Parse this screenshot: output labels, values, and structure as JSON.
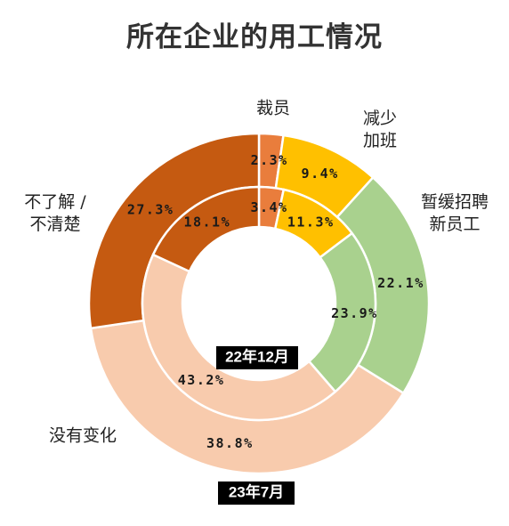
{
  "title": "所在企业的用工情况",
  "chart_data": {
    "type": "donut",
    "title": "所在企业的用工情况",
    "categories": [
      "裁员",
      "减少加班",
      "暂缓招聘新员工",
      "没有变化",
      "不了解 / 不清楚"
    ],
    "category_labels": [
      [
        "裁员"
      ],
      [
        "减少",
        "加班"
      ],
      [
        "暂缓招聘",
        "新员工"
      ],
      [
        "没有变化"
      ],
      [
        "不了解 /",
        "不清楚"
      ]
    ],
    "colors": [
      "#E97D3C",
      "#FFC000",
      "#A9D18E",
      "#F8CBAD",
      "#C55A11"
    ],
    "series": [
      {
        "name": "22年12月",
        "ring": "inner",
        "values": [
          3.4,
          11.3,
          23.9,
          43.2,
          18.1
        ]
      },
      {
        "name": "23年7月",
        "ring": "outer",
        "values": [
          2.3,
          9.4,
          22.1,
          38.8,
          27.3
        ]
      }
    ]
  }
}
